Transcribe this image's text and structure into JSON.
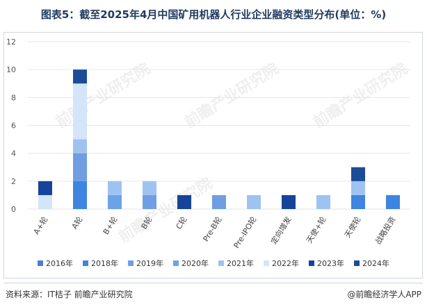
{
  "title": "图表5：截至2025年4月中国矿用机器人行业企业融资类型分布(单位：%)",
  "source": "资料来源：IT桔子 前瞻产业研究院",
  "brand": "@前瞻经济学人APP",
  "watermark": "前瞻产业研究院",
  "colors": {
    "2016年": "#4a7fd0",
    "2018年": "#3d85e0",
    "2019年": "#6f9ee3",
    "2020年": "#6ba3e8",
    "2021年": "#9fc3f1",
    "2022年": "#d4e4f9",
    "2023年": "#15449a",
    "2024年": "#1b4d96"
  },
  "chart_data": {
    "type": "bar",
    "stacked": true,
    "title": "图表5：截至2025年4月中国矿用机器人行业企业融资类型分布(单位：%)",
    "xlabel": "",
    "ylabel": "",
    "ylim": [
      0,
      12
    ],
    "yticks": [
      0,
      2,
      4,
      6,
      8,
      10,
      12
    ],
    "grid": true,
    "legend_position": "bottom",
    "categories": [
      "A+轮",
      "A轮",
      "B+轮",
      "B轮",
      "C轮",
      "Pre-B轮",
      "Pre-IPO轮",
      "定向增发",
      "天使+轮",
      "天使轮",
      "战略投资"
    ],
    "series": [
      {
        "name": "2016年",
        "values": [
          0,
          0,
          0,
          0,
          0,
          0,
          0,
          0,
          0,
          0,
          0
        ]
      },
      {
        "name": "2018年",
        "values": [
          0,
          2,
          0,
          0,
          0,
          0,
          0,
          0,
          0,
          1,
          1
        ]
      },
      {
        "name": "2019年",
        "values": [
          0,
          2,
          0,
          1,
          0,
          1,
          0,
          0,
          0,
          0,
          0
        ]
      },
      {
        "name": "2020年",
        "values": [
          0,
          0,
          1,
          0,
          0,
          0,
          0,
          0,
          0,
          0,
          0
        ]
      },
      {
        "name": "2021年",
        "values": [
          0,
          1,
          1,
          1,
          0,
          0,
          1,
          0,
          1,
          1,
          0
        ]
      },
      {
        "name": "2022年",
        "values": [
          1,
          4,
          0,
          0,
          0,
          0,
          0,
          0,
          0,
          0,
          0
        ]
      },
      {
        "name": "2023年",
        "values": [
          1,
          0,
          0,
          0,
          1,
          0,
          0,
          1,
          0,
          0,
          0
        ]
      },
      {
        "name": "2024年",
        "values": [
          0,
          1,
          0,
          0,
          0,
          0,
          0,
          0,
          0,
          1,
          0
        ]
      }
    ]
  }
}
